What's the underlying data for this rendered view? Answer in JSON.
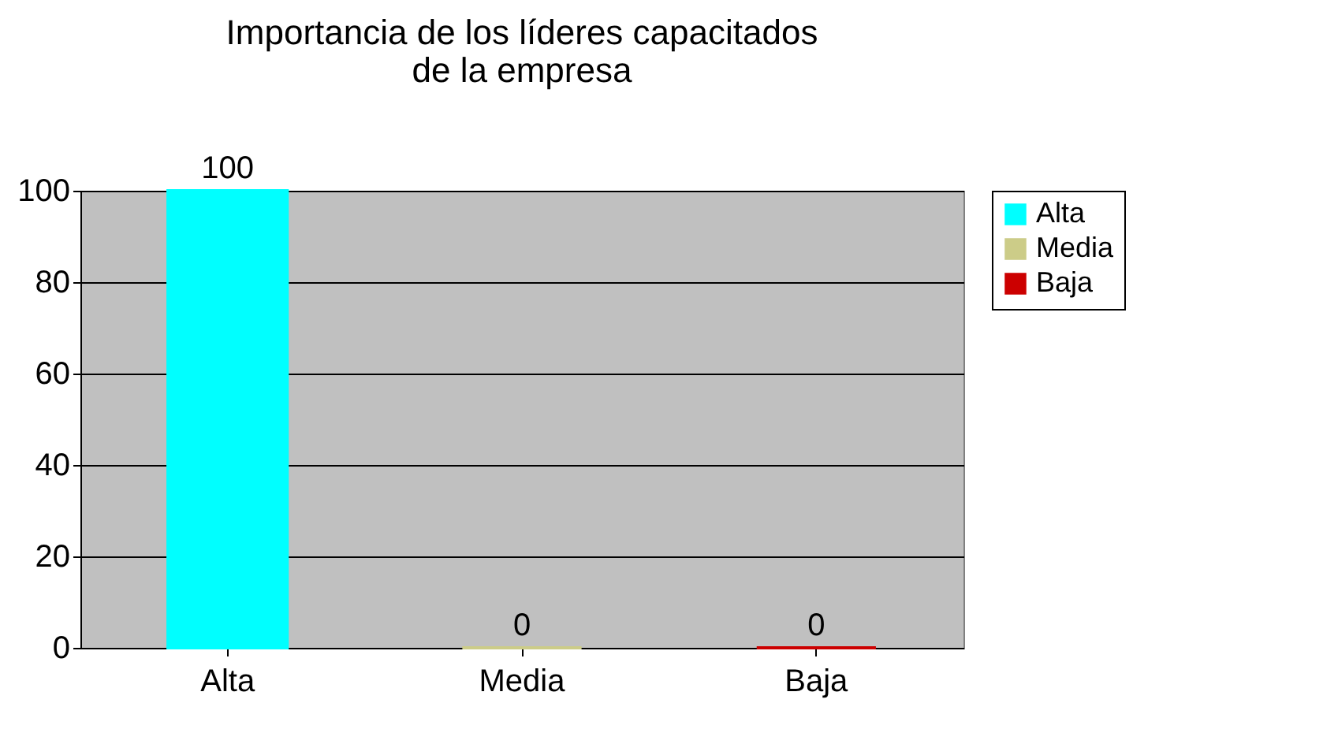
{
  "chart_data": {
    "type": "bar",
    "title": "Importancia de los líderes capacitados\nde la empresa",
    "categories": [
      "Alta",
      "Media",
      "Baja"
    ],
    "series": [
      {
        "name": "Alta",
        "color": "#00ffff",
        "values": [
          100,
          null,
          null
        ]
      },
      {
        "name": "Media",
        "color": "#cccc88",
        "values": [
          null,
          0,
          null
        ]
      },
      {
        "name": "Baja",
        "color": "#cc0000",
        "values": [
          null,
          null,
          0
        ]
      }
    ],
    "ylim": [
      0,
      100
    ],
    "yticks": [
      0,
      20,
      40,
      60,
      80,
      100
    ],
    "grid": "y",
    "legend": "right",
    "data_labels": true
  }
}
